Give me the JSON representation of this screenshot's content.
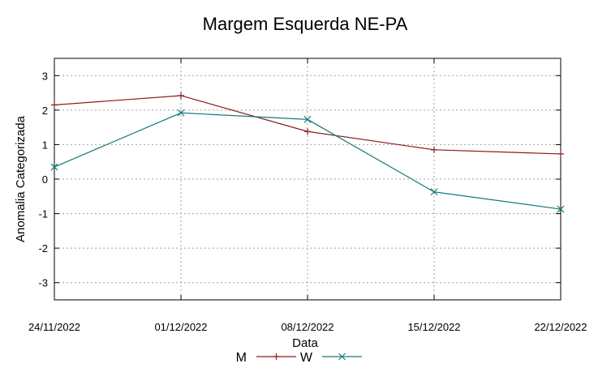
{
  "chart_data": {
    "type": "line",
    "title": "Margem Esquerda NE-PA",
    "xlabel": "Data",
    "ylabel": "Anomalia Categorizada",
    "categories": [
      "24/11/2022",
      "01/12/2022",
      "08/12/2022",
      "15/12/2022",
      "22/12/2022"
    ],
    "yticks": [
      "3",
      "2",
      "1",
      "0",
      "-1",
      "-2",
      "-3"
    ],
    "ylim": [
      -3.5,
      3.5
    ],
    "grid": true,
    "legend_position": "bottom",
    "series": [
      {
        "name": "M",
        "values": [
          2.15,
          2.42,
          1.38,
          0.85,
          0.73
        ],
        "color": "#8b1a1a",
        "marker": "plus"
      },
      {
        "name": "W",
        "values": [
          0.35,
          1.92,
          1.73,
          -0.37,
          -0.87
        ],
        "color": "#1a7a7a",
        "marker": "cross"
      }
    ]
  }
}
